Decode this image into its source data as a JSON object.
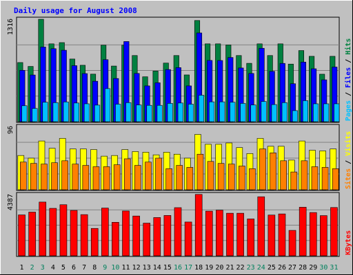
{
  "chart_data": {
    "type": "bar",
    "title": "Daily usage for August 2008",
    "categories": [
      "1",
      "2",
      "3",
      "4",
      "5",
      "6",
      "7",
      "8",
      "9",
      "10",
      "11",
      "12",
      "13",
      "14",
      "15",
      "16",
      "17",
      "18",
      "19",
      "20",
      "21",
      "22",
      "23",
      "24",
      "25",
      "26",
      "27",
      "28",
      "29",
      "30",
      "31"
    ],
    "weekend_days": [
      "2",
      "3",
      "9",
      "10",
      "16",
      "17",
      "23",
      "24",
      "30",
      "31"
    ],
    "panels": [
      {
        "name": "hits-files-pages",
        "ymax": 1316,
        "tick_label": "1316",
        "right_label": [
          "Pages",
          "/",
          "Files",
          "/",
          "Hits"
        ],
        "right_label_colors": [
          "#00C0FF",
          "#000000",
          "#0000FF",
          "#000000",
          "#008040"
        ],
        "series": [
          {
            "name": "Hits",
            "color": "#008040",
            "values": [
              760,
              710,
              1316,
              1000,
              1016,
              805,
              725,
              611,
              983,
              715,
              983,
              850,
              577,
              650,
              753,
              850,
              601,
              1300,
              1000,
              1000,
              986,
              850,
              750,
              1000,
              850,
              1000,
              740,
              914,
              840,
              610,
              840
            ]
          },
          {
            "name": "Files",
            "color": "#0000FF",
            "values": [
              660,
              600,
              960,
              938,
              918,
              720,
              618,
              520,
              797,
              555,
              1030,
              620,
              460,
              500,
              670,
              695,
              460,
              1140,
              787,
              786,
              825,
              690,
              620,
              943,
              647,
              749,
              488,
              766,
              680,
              538,
              702
            ]
          },
          {
            "name": "Pages",
            "color": "#00C0FF",
            "values": [
              205,
              170,
              250,
              245,
              254,
              240,
              230,
              213,
              425,
              225,
              245,
              215,
              210,
              210,
              235,
              240,
              225,
              340,
              255,
              255,
              250,
              235,
              215,
              260,
              220,
              245,
              142,
              270,
              230,
              230,
              230
            ]
          }
        ]
      },
      {
        "name": "visits-sites",
        "ymax": 96,
        "tick_label": "96",
        "right_label": [
          "Sites",
          "/",
          "Visits"
        ],
        "right_label_colors": [
          "#FF8000",
          "#000000",
          "#FFFF00"
        ],
        "series": [
          {
            "name": "Visits",
            "color": "#FFFF00",
            "values": [
              52,
              48,
              74,
              63,
              78,
              62,
              62,
              61,
              51,
              52,
              61,
              58,
              57,
              53,
              57,
              54,
              48,
              84,
              69,
              69,
              71,
              64,
              55,
              78,
              66,
              66,
              45,
              74,
              60,
              59,
              62
            ]
          },
          {
            "name": "Sites",
            "color": "#FF8000",
            "values": [
              42,
              40,
              39,
              41,
              44,
              39,
              37,
              35,
              35,
              38,
              47,
              37,
              42,
              48,
              32,
              37,
              34,
              54,
              43,
              40,
              39,
              36,
              32,
              62,
              56,
              44,
              27,
              44,
              35,
              34,
              32
            ]
          }
        ]
      },
      {
        "name": "kbytes",
        "ymax": 4387,
        "tick_label": "4387",
        "right_label": [
          "KBytes"
        ],
        "right_label_colors": [
          "#FF0000"
        ],
        "series": [
          {
            "name": "KBytes",
            "color": "#FF0000",
            "values": [
              2930,
              3130,
              3850,
              3400,
              3660,
              3250,
              2950,
              1960,
              3420,
              2400,
              3210,
              2850,
              2340,
              2740,
              2890,
              3450,
              2420,
              4400,
              3200,
              3270,
              3050,
              3050,
              2640,
              4230,
              2920,
              3000,
              1820,
              3480,
              3100,
              2880,
              3460
            ]
          }
        ]
      }
    ]
  }
}
